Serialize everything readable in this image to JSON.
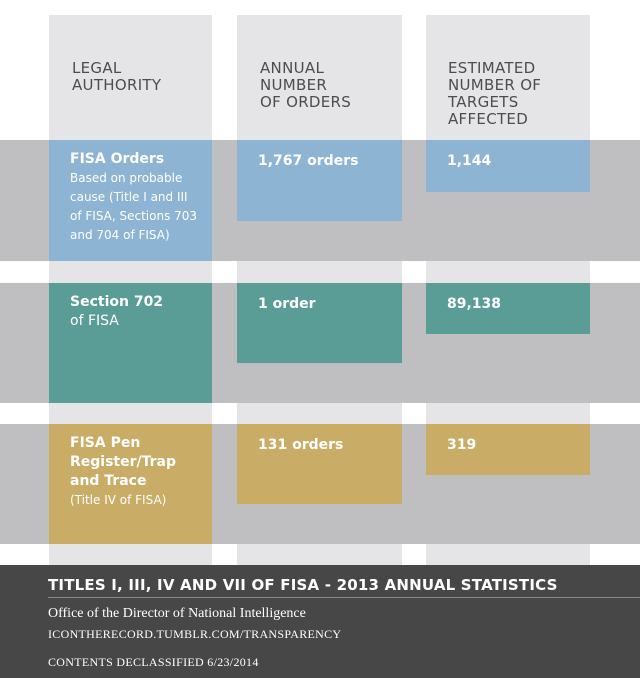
{
  "header": {
    "col1": [
      "LEGAL",
      "AUTHORITY"
    ],
    "col2": [
      "ANNUAL",
      "NUMBER",
      "OF ORDERS"
    ],
    "col3": [
      "ESTIMATED",
      "NUMBER OF",
      "TARGETS",
      "AFFECTED"
    ]
  },
  "rows": [
    {
      "title_lines": [
        "FISA Orders"
      ],
      "sub_lines": [
        "Based on probable",
        "cause (Title I and III",
        "of FISA, Sections 703",
        "and 704 of FISA)"
      ],
      "orders": "1,767 orders",
      "targets": "1,144",
      "color": "#8db4d3"
    },
    {
      "title_lines": [
        "Section 702"
      ],
      "sub_lines": [
        "of FISA"
      ],
      "orders": "1 order",
      "targets": "89,138",
      "color": "#5a9d96"
    },
    {
      "title_lines": [
        "FISA Pen",
        "Register/Trap",
        "and Trace"
      ],
      "sub_lines": [
        "(Title IV of FISA)"
      ],
      "orders": "131 orders",
      "targets": "319",
      "color": "#c9ad66"
    }
  ],
  "footer": {
    "title": "TITLES I, III, IV AND VII OF FISA - 2013 ANNUAL STATISTICS",
    "office": "Office of the Director of National Intelligence",
    "url": "ICONTHERECORD.TUMBLR.COM/TRANSPARENCY",
    "declassified": "CONTENTS DECLASSIFIED 6/23/2014"
  },
  "colors": {
    "column_bg": "#e5e5e7",
    "band_bg": "#bfbfc1",
    "footer_bg": "#474747",
    "header_text": "#4d4d4f"
  }
}
